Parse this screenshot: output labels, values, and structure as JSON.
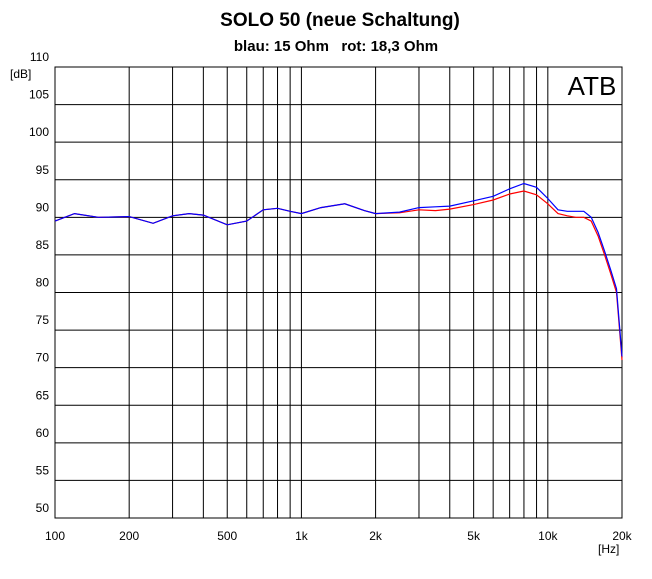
{
  "chart_data": {
    "type": "line",
    "title": "SOLO 50 (neue Schaltung)",
    "subtitle": "blau: 15 Ohm   rot: 18,3 Ohm",
    "x_label": "[Hz]",
    "y_label": "[dB]",
    "annotation": "ATB",
    "log_x": true,
    "grid": true,
    "x": [
      100,
      120,
      150,
      200,
      250,
      300,
      350,
      400,
      500,
      600,
      700,
      800,
      900,
      1000,
      1200,
      1500,
      1800,
      2000,
      2500,
      3000,
      3500,
      4000,
      5000,
      6000,
      7000,
      8000,
      9000,
      10000,
      11000,
      12000,
      13000,
      14000,
      15000,
      16000,
      17000,
      18000,
      19000,
      20000
    ],
    "series": [
      {
        "color": "#ff0000",
        "values": [
          89.5,
          90.5,
          90.0,
          90.1,
          89.2,
          90.2,
          90.5,
          90.3,
          89.0,
          89.5,
          91.0,
          91.2,
          90.8,
          90.5,
          91.3,
          91.8,
          90.9,
          90.5,
          90.6,
          91.0,
          90.9,
          91.1,
          91.7,
          92.3,
          93.1,
          93.5,
          93.0,
          91.8,
          90.5,
          90.2,
          90.0,
          90.0,
          89.5,
          87.5,
          85.0,
          82.5,
          80.0,
          71.0
        ]
      },
      {
        "color": "#0000ff",
        "values": [
          89.5,
          90.5,
          90.0,
          90.1,
          89.2,
          90.2,
          90.5,
          90.3,
          89.0,
          89.5,
          91.0,
          91.2,
          90.8,
          90.5,
          91.3,
          91.8,
          90.9,
          90.5,
          90.7,
          91.3,
          91.4,
          91.5,
          92.2,
          92.8,
          93.8,
          94.5,
          94.0,
          92.5,
          91.0,
          90.8,
          90.8,
          90.8,
          90.0,
          88.0,
          85.5,
          83.0,
          80.5,
          71.5
        ]
      }
    ],
    "xlim": [
      100,
      20000
    ],
    "xticks": [
      100,
      200,
      500,
      {
        "value": 1000,
        "label": "1k"
      },
      {
        "value": 2000,
        "label": "2k"
      },
      {
        "value": 5000,
        "label": "5k"
      },
      {
        "value": 10000,
        "label": "10k"
      },
      {
        "value": 20000,
        "label": "20k"
      }
    ],
    "xgrid": [
      300,
      400,
      600,
      700,
      800,
      900,
      3000,
      4000,
      6000,
      7000,
      8000,
      9000
    ],
    "ylim": [
      50,
      110
    ],
    "yticks": [
      50,
      55,
      60,
      65,
      70,
      75,
      80,
      85,
      90,
      95,
      100,
      105,
      110
    ]
  }
}
